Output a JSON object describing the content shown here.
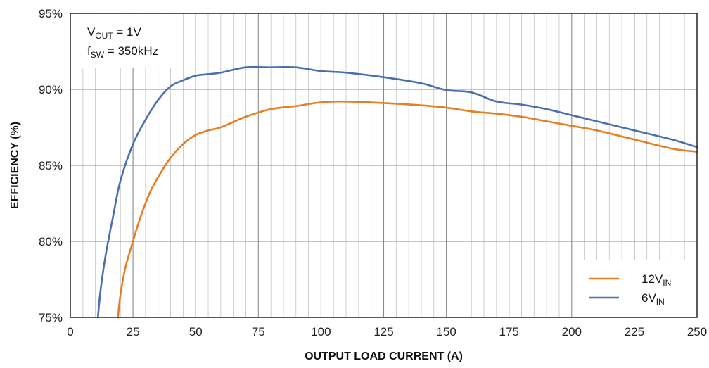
{
  "chart_data": {
    "type": "line",
    "xlabel": "OUTPUT LOAD CURRENT  (A)",
    "ylabel": "EFFICIENCY (%)",
    "xlim": [
      0,
      250
    ],
    "ylim": [
      75,
      95
    ],
    "x_ticks": [
      0,
      25,
      50,
      75,
      100,
      125,
      150,
      175,
      200,
      225,
      250
    ],
    "x_tick_labels": [
      "0",
      "25",
      "50",
      "75",
      "100",
      "125",
      "150",
      "175",
      "200",
      "225",
      "250"
    ],
    "y_ticks": [
      75,
      80,
      85,
      90,
      95
    ],
    "y_tick_labels": [
      "75%",
      "80%",
      "85%",
      "90%",
      "95%"
    ],
    "grid": true,
    "legend_position": "bottom-right",
    "annotations": [
      {
        "main": "V",
        "sub": "OUT",
        "rest": " = 1V"
      },
      {
        "main": "f",
        "sub": "SW",
        "rest": " = 350kHz"
      }
    ],
    "series": [
      {
        "name": "12V",
        "name_sub": "IN",
        "color": "#E67E22",
        "x": [
          19,
          20,
          22,
          25,
          28,
          32,
          36,
          40,
          45,
          50,
          55,
          60,
          70,
          80,
          90,
          100,
          110,
          125,
          140,
          150,
          160,
          170,
          180,
          190,
          200,
          210,
          225,
          240,
          250
        ],
        "y": [
          75,
          76.5,
          78.3,
          80.0,
          81.6,
          83.3,
          84.5,
          85.5,
          86.4,
          87.0,
          87.3,
          87.5,
          88.2,
          88.7,
          88.9,
          89.15,
          89.2,
          89.1,
          88.95,
          88.8,
          88.55,
          88.4,
          88.2,
          87.9,
          87.6,
          87.3,
          86.7,
          86.1,
          85.9
        ]
      },
      {
        "name": "6V",
        "name_sub": "IN",
        "color": "#4A6FB0",
        "x": [
          11,
          12,
          14,
          17,
          20,
          25,
          30,
          35,
          40,
          45,
          50,
          55,
          60,
          70,
          80,
          90,
          100,
          110,
          125,
          140,
          150,
          160,
          170,
          180,
          190,
          200,
          210,
          225,
          240,
          250
        ],
        "y": [
          75,
          76.7,
          79.0,
          81.6,
          84.0,
          86.4,
          88.0,
          89.3,
          90.2,
          90.6,
          90.9,
          91.0,
          91.1,
          91.45,
          91.45,
          91.45,
          91.2,
          91.1,
          90.8,
          90.4,
          89.95,
          89.8,
          89.2,
          89.0,
          88.7,
          88.3,
          87.9,
          87.3,
          86.7,
          86.2
        ]
      }
    ]
  }
}
